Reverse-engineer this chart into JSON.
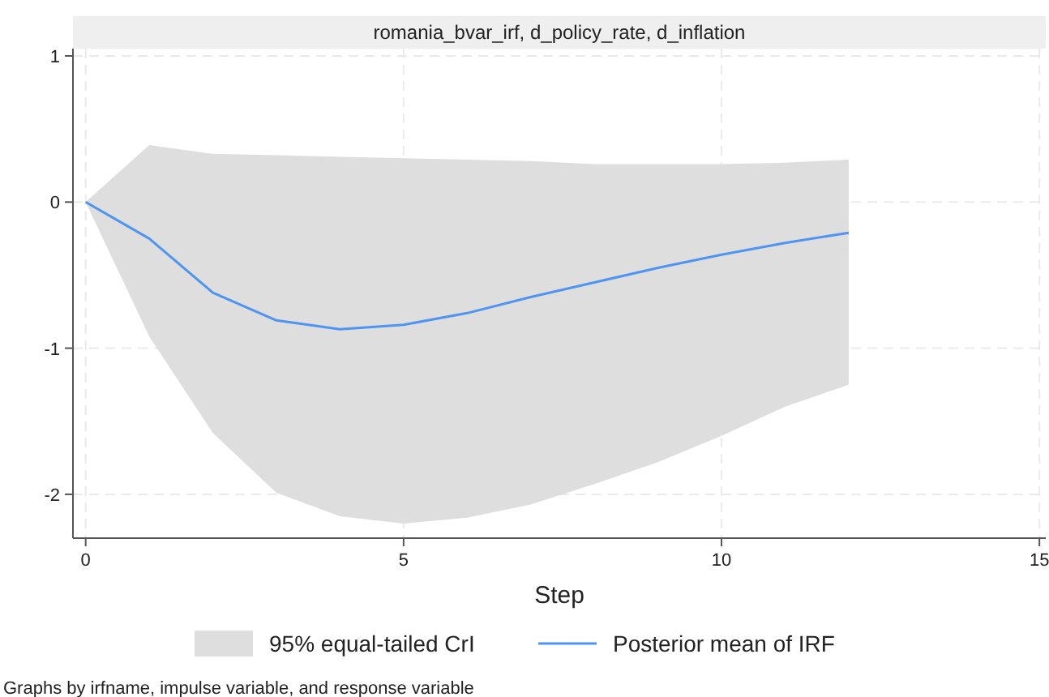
{
  "chart_data": {
    "type": "line",
    "title": "romania_bvar_irf, d_policy_rate, d_inflation",
    "xlabel": "Step",
    "x": [
      0,
      1,
      2,
      3,
      4,
      5,
      6,
      7,
      8,
      9,
      10,
      11,
      12
    ],
    "series": [
      {
        "name": "Posterior mean of IRF",
        "type": "line",
        "color": "#4f94f0",
        "values": [
          0,
          -0.25,
          -0.62,
          -0.81,
          -0.87,
          -0.84,
          -0.76,
          -0.65,
          -0.55,
          -0.45,
          -0.36,
          -0.28,
          -0.21
        ],
        "lower": [
          0,
          -0.92,
          -1.58,
          -1.99,
          -2.15,
          -2.2,
          -2.16,
          -2.07,
          -1.93,
          -1.78,
          -1.6,
          -1.4,
          -1.25
        ],
        "upper": [
          0,
          0.39,
          0.33,
          0.32,
          0.31,
          0.3,
          0.29,
          0.28,
          0.26,
          0.26,
          0.26,
          0.27,
          0.29
        ]
      }
    ],
    "xlim": [
      -0.2,
      15.1
    ],
    "ylim": [
      -2.3,
      1.05
    ],
    "xticks": [
      0,
      5,
      10,
      15
    ],
    "yticks": [
      -2,
      -1,
      0,
      1
    ],
    "grid": true,
    "legend": "bottom",
    "line_style": "solid",
    "marker": "none",
    "annotations": [
      "95% equal-tailed CrI",
      "Graphs by irfname, impulse variable, and response variable"
    ]
  }
}
